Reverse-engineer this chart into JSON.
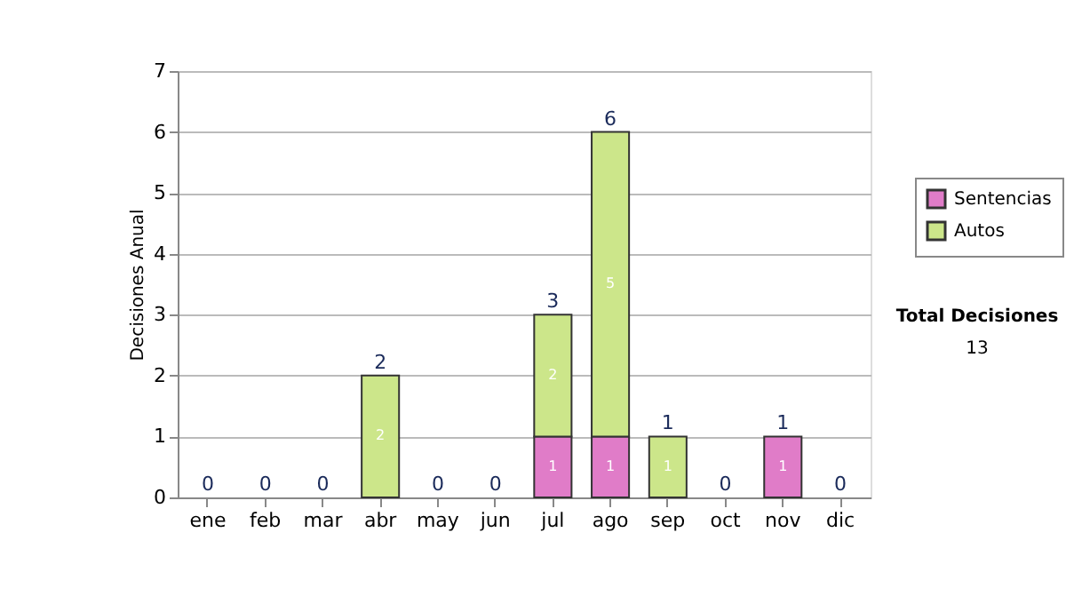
{
  "chart_data": {
    "type": "bar",
    "stacked": true,
    "ylabel": "Decisiones Anual",
    "categories": [
      "ene",
      "feb",
      "mar",
      "abr",
      "may",
      "jun",
      "jul",
      "ago",
      "sep",
      "oct",
      "nov",
      "dic"
    ],
    "series": [
      {
        "name": "Sentencias",
        "color": "#e07cc8",
        "values": [
          0,
          0,
          0,
          0,
          0,
          0,
          1,
          1,
          0,
          0,
          1,
          0
        ],
        "value_labels": [
          null,
          null,
          null,
          null,
          null,
          null,
          "1",
          "1",
          null,
          null,
          "1",
          null
        ]
      },
      {
        "name": "Autos",
        "color": "#cce68a",
        "values": [
          0,
          0,
          0,
          2,
          0,
          0,
          2,
          5,
          1,
          0,
          0,
          0
        ],
        "value_labels": [
          null,
          null,
          null,
          "2",
          null,
          null,
          "2",
          "5",
          "1",
          null,
          null,
          null
        ]
      }
    ],
    "totals": [
      "0",
      "0",
      "0",
      "2",
      "0",
      "0",
      "3",
      "6",
      "1",
      "0",
      "1",
      "0"
    ],
    "ylim": [
      0,
      7
    ],
    "yticks": [
      0,
      1,
      2,
      3,
      4,
      5,
      6,
      7
    ],
    "grid": "y",
    "legend": "right",
    "annotations": [
      "Total Decisiones",
      "13"
    ]
  }
}
